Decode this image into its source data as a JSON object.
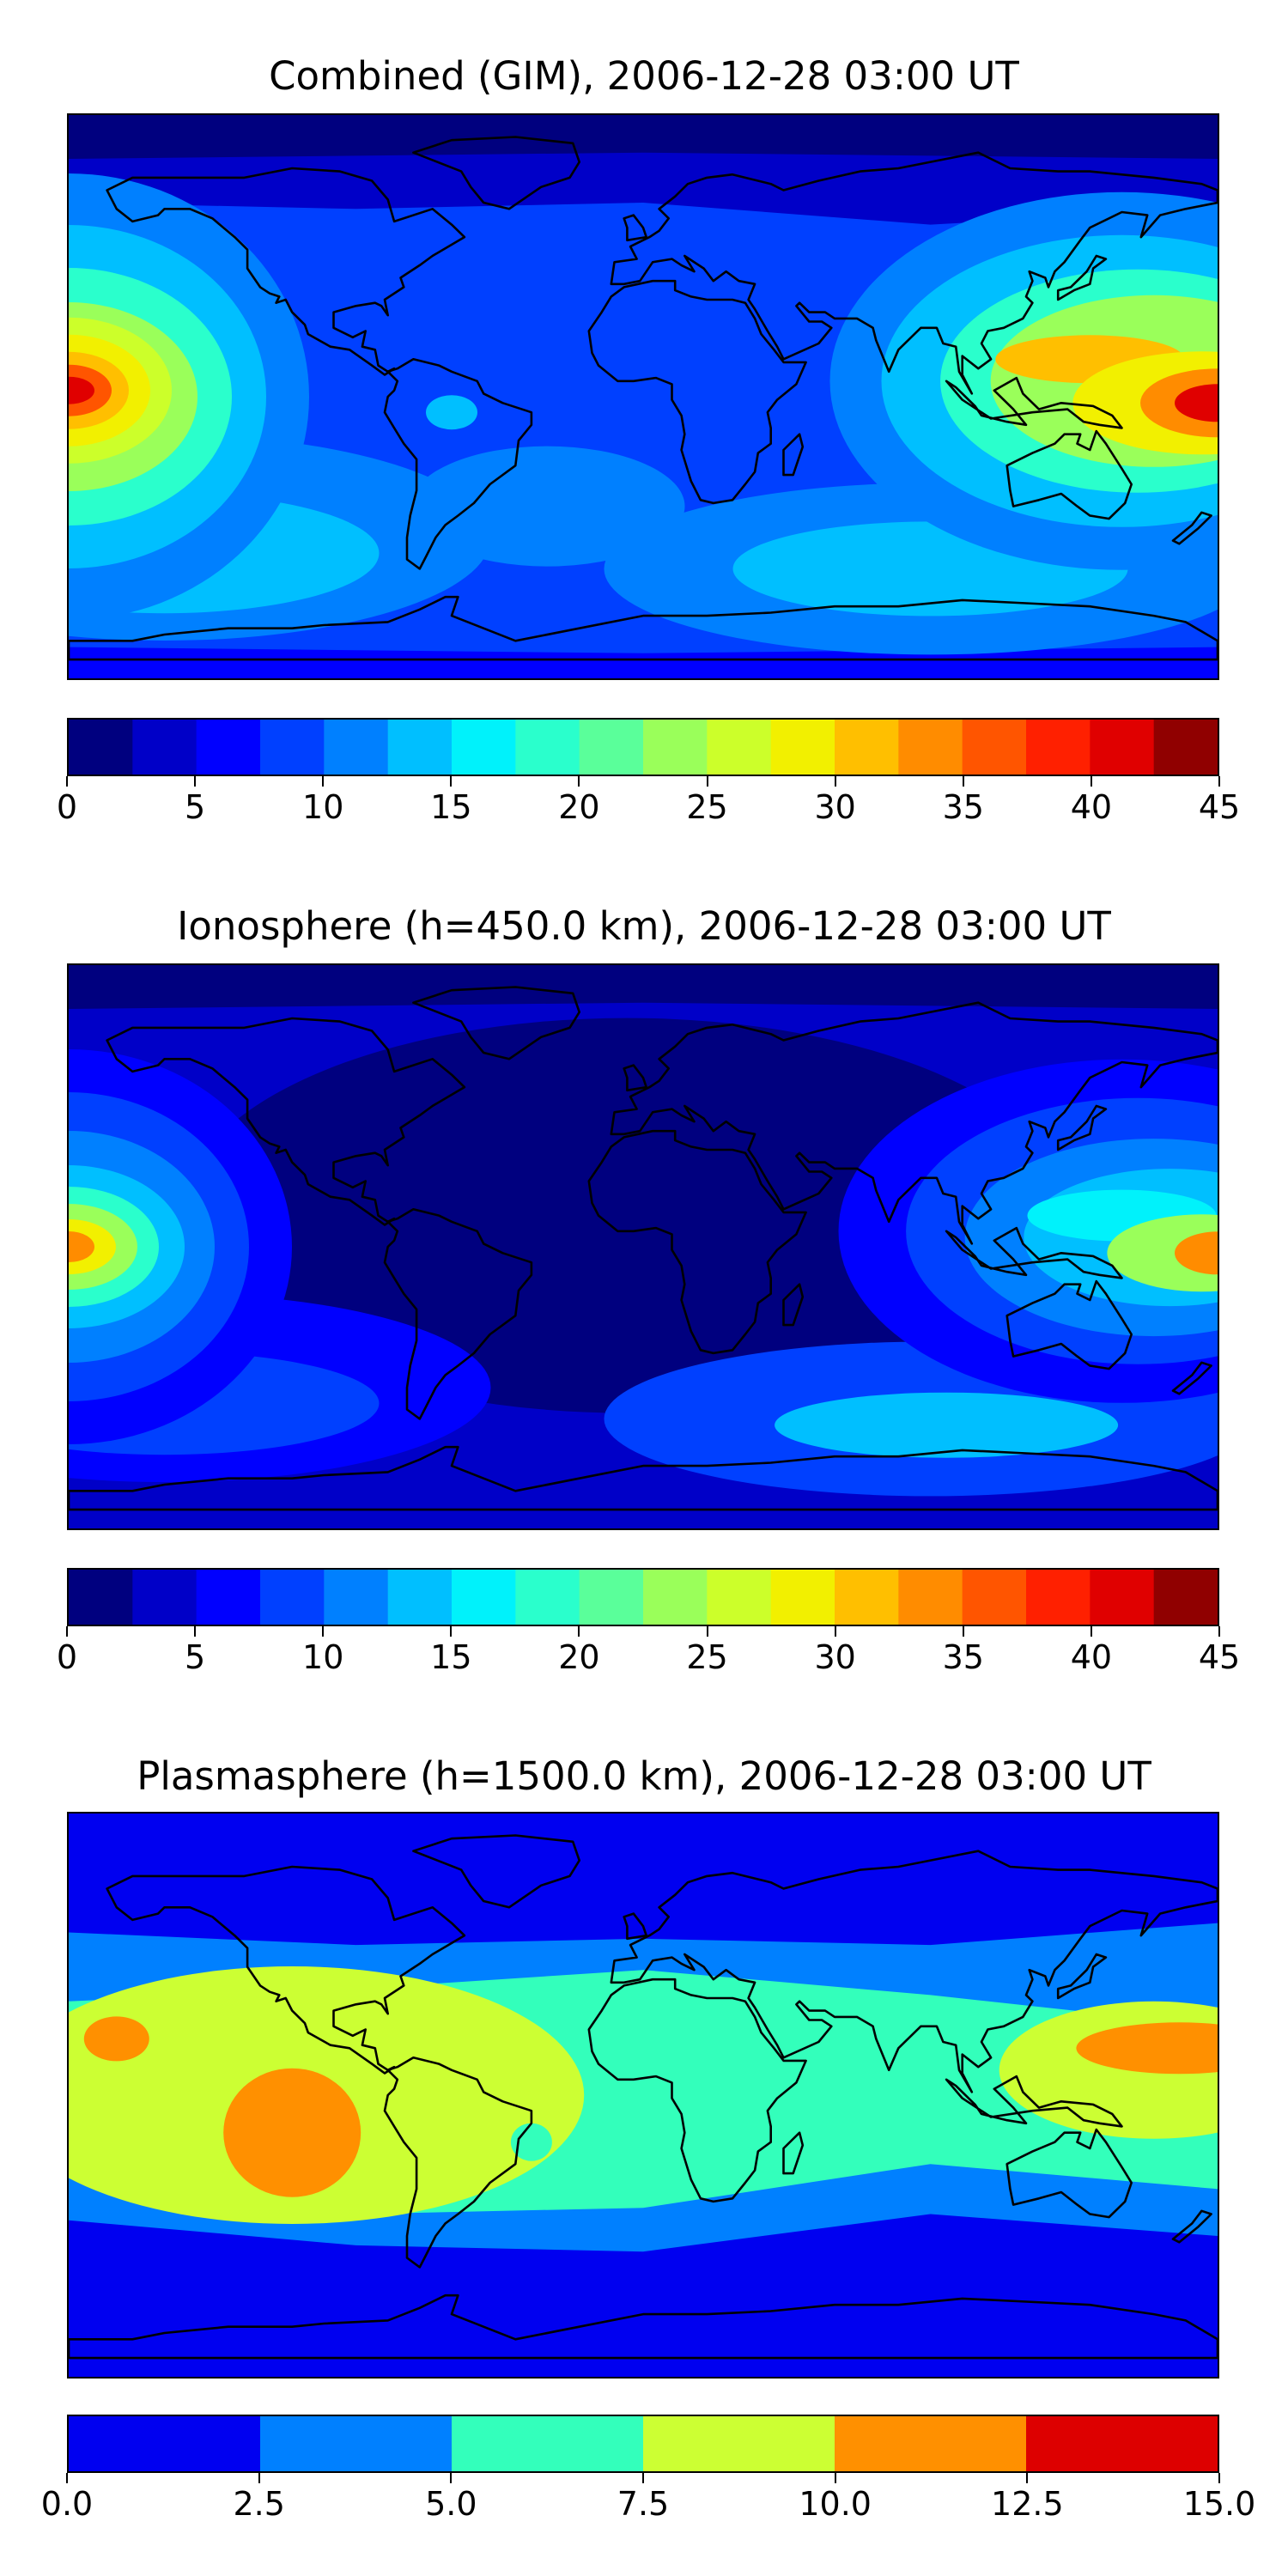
{
  "chart_data": [
    {
      "type": "heatmap",
      "title": "Combined (GIM), 2006-12-28 03:00 UT",
      "colorbar": {
        "ticks": [
          "0",
          "5",
          "10",
          "15",
          "20",
          "25",
          "30",
          "35",
          "40",
          "45"
        ],
        "range": [
          0,
          45
        ],
        "levels": [
          0,
          2.5,
          5,
          7.5,
          10,
          12.5,
          15,
          17.5,
          20,
          22.5,
          25,
          27.5,
          30,
          32.5,
          35,
          37.5,
          40,
          42.5,
          45
        ]
      },
      "background_value": 8,
      "features": [
        {
          "region": "central Pacific",
          "lon": -180,
          "lat": 0,
          "peak": 40
        },
        {
          "region": "western Pacific / Australia",
          "lon": 180,
          "lat": 0,
          "peak": 40
        },
        {
          "region": "east Asia",
          "lon": 140,
          "lat": 10,
          "peak": 31
        },
        {
          "region": "southern Pacific",
          "lon": -150,
          "lat": -50,
          "peak": 15
        },
        {
          "region": "southern Indian Ocean",
          "lon": 80,
          "lat": -55,
          "peak": 15
        },
        {
          "region": "arctic",
          "lon": 0,
          "lat": 80,
          "peak": 4
        }
      ]
    },
    {
      "type": "heatmap",
      "title": "Ionosphere  (h=450.0 km), 2006-12-28 03:00 UT",
      "colorbar": {
        "ticks": [
          "0",
          "5",
          "10",
          "15",
          "20",
          "25",
          "30",
          "35",
          "40",
          "45"
        ],
        "range": [
          0,
          45
        ],
        "levels": [
          0,
          2.5,
          5,
          7.5,
          10,
          12.5,
          15,
          17.5,
          20,
          22.5,
          25,
          27.5,
          30,
          32.5,
          35,
          37.5,
          40,
          42.5,
          45
        ]
      },
      "background_value": 3,
      "features": [
        {
          "region": "central Pacific",
          "lon": -180,
          "lat": 0,
          "peak": 33
        },
        {
          "region": "western Pacific / Australia",
          "lon": 180,
          "lat": 0,
          "peak": 33
        },
        {
          "region": "east Asia",
          "lon": 140,
          "lat": 10,
          "peak": 20
        },
        {
          "region": "southern Pacific",
          "lon": -150,
          "lat": -50,
          "peak": 12
        },
        {
          "region": "southern Indian Ocean",
          "lon": 80,
          "lat": -55,
          "peak": 15
        }
      ]
    },
    {
      "type": "heatmap",
      "title": "Plasmasphere (h=1500.0 km), 2006-12-28 03:00 UT",
      "colorbar": {
        "ticks": [
          "0.0",
          "2.5",
          "5.0",
          "7.5",
          "10.0",
          "12.5",
          "15.0"
        ],
        "range": [
          0,
          15
        ],
        "levels": [
          0,
          2.5,
          5,
          7.5,
          10,
          12.5,
          15
        ]
      },
      "background_value": 1.5,
      "features": [
        {
          "region": "low-latitude band",
          "lon": 0,
          "lat": 5,
          "peak": 7
        },
        {
          "region": "eastern Pacific / South America",
          "lon": -95,
          "lat": -10,
          "peak": 10.5
        },
        {
          "region": "western Pacific",
          "lon": 150,
          "lat": 10,
          "peak": 10.5
        },
        {
          "region": "central Pacific",
          "lon": -160,
          "lat": 15,
          "peak": 10.5
        }
      ]
    }
  ],
  "colors": {
    "jet18": [
      "#00007f",
      "#0000c8",
      "#0000ff",
      "#0040ff",
      "#0080ff",
      "#00bfff",
      "#00f2fb",
      "#2affcc",
      "#5aff9a",
      "#9aff5a",
      "#ccff2a",
      "#f2f000",
      "#ffbf00",
      "#ff8c00",
      "#ff5500",
      "#ff2000",
      "#e00000",
      "#900000"
    ],
    "plasma6": [
      "#0000f0",
      "#0080ff",
      "#33ffbb",
      "#ccff33",
      "#ff9000",
      "#dd0000"
    ]
  },
  "icons": [
    "coastline-outline"
  ]
}
